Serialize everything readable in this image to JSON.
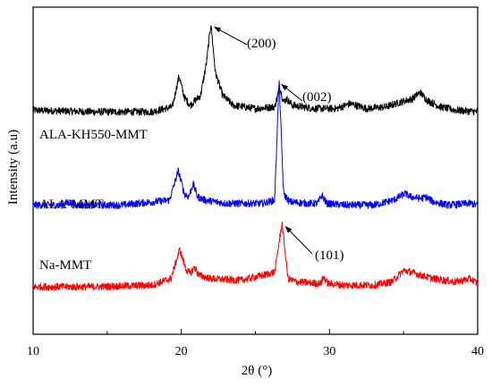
{
  "chart_data": {
    "type": "line",
    "title": "",
    "xlabel": "2θ (°)",
    "ylabel": "Intensity (a.u)",
    "xlim": [
      10,
      40
    ],
    "ylim": [
      0,
      100
    ],
    "y_tick_labels": false,
    "x_ticks": [
      10,
      20,
      30,
      40
    ],
    "x_tick_labels": [
      "10",
      "20",
      "30",
      "40"
    ],
    "grid": false,
    "legend": "none",
    "series": [
      {
        "name": "ALA-KH550-MMT",
        "color": "#000000",
        "baseline": 68,
        "noise": 0.7,
        "x": [
          10,
          14,
          18,
          19.4,
          19.85,
          20.2,
          20.6,
          21.3,
          21.7,
          22.0,
          22.3,
          22.8,
          23.5,
          25,
          26.3,
          26.65,
          26.9,
          27.1,
          27.5,
          28.2,
          29,
          30.5,
          31.4,
          32.5,
          33.8,
          34.8,
          35.6,
          36.1,
          36.6,
          37.5,
          38.5,
          40
        ],
        "y": [
          68.5,
          68,
          68,
          69.5,
          79,
          72.5,
          70,
          73,
          83,
          95,
          80,
          73,
          70,
          69,
          69.5,
          75.5,
          71,
          72,
          70,
          69.5,
          69,
          69,
          70.5,
          69,
          69.5,
          71,
          72,
          74,
          71.5,
          69.5,
          68.5,
          68
        ]
      },
      {
        "name": "ALA-MMT",
        "color": "#0000ff",
        "baseline": 38.5,
        "noise": 0.7,
        "x": [
          10,
          12,
          12.4,
          12.8,
          16,
          19.2,
          19.8,
          20.2,
          20.5,
          20.8,
          21.1,
          21.6,
          23,
          25.5,
          26.3,
          26.6,
          26.9,
          27.3,
          28.5,
          29.2,
          29.5,
          29.8,
          31,
          33,
          34.3,
          35.1,
          35.5,
          36.2,
          36.5,
          37,
          38,
          39.5,
          40
        ],
        "y": [
          39.5,
          39.5,
          40.5,
          39.5,
          39.5,
          41,
          50,
          43,
          42,
          46,
          42,
          41,
          40,
          40,
          41,
          78,
          43,
          40.5,
          40,
          40,
          42.5,
          40,
          39.5,
          39.5,
          41,
          43,
          42,
          41.5,
          42,
          40.5,
          39.5,
          40,
          39.5
        ]
      },
      {
        "name": "Na-MMT",
        "color": "#ff0000",
        "baseline": 14.5,
        "noise": 0.7,
        "x": [
          10,
          14,
          18,
          19.3,
          19.9,
          20.3,
          20.6,
          20.9,
          21.2,
          22,
          24,
          25.5,
          26.3,
          26.8,
          27.2,
          27.8,
          29.4,
          29.6,
          29.9,
          31,
          33,
          34.2,
          35,
          35.5,
          36.2,
          37,
          38.5,
          39.5,
          40
        ],
        "y": [
          14.5,
          14.5,
          15,
          17,
          26,
          20,
          18.5,
          20.5,
          18,
          17,
          16.5,
          18,
          19,
          34,
          17,
          16,
          15.5,
          17.5,
          15.5,
          15,
          15,
          16,
          19.5,
          19,
          18,
          17,
          16,
          17,
          15.5
        ]
      }
    ],
    "annotations": [
      {
        "text": "(200)",
        "target": [
          22.0,
          95
        ]
      },
      {
        "text": "(002)",
        "target": [
          26.65,
          78
        ]
      },
      {
        "text": "(101)",
        "target": [
          26.8,
          34
        ]
      }
    ]
  }
}
